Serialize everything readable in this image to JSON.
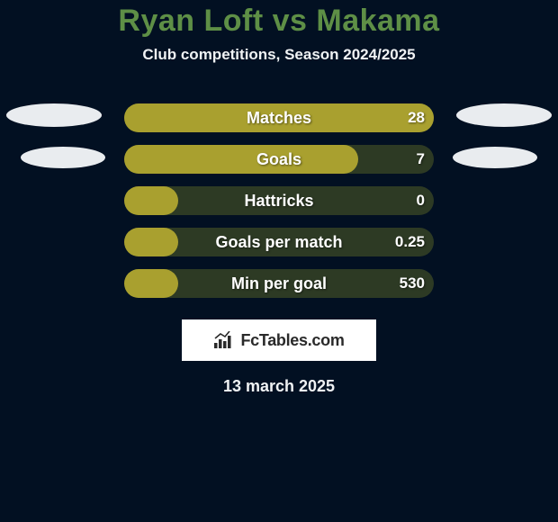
{
  "colors": {
    "background": "#021022",
    "title": "#5e8f46",
    "subtitle": "#f0f2f4",
    "bar_fill": "#a9a02f",
    "bar_track": "#2d3a24",
    "stat_text": "#ffffff",
    "ellipse": "#e9ecef",
    "badge_bg": "#ffffff",
    "badge_text": "#2a2a2a",
    "date": "#f0f2f4"
  },
  "title": {
    "text": "Ryan Loft vs Makama",
    "fontsize": 34
  },
  "subtitle": {
    "text": "Club competitions, Season 2024/2025",
    "fontsize": 17
  },
  "stats": {
    "label_fontsize": 18,
    "value_fontsize": 17,
    "rows": [
      {
        "label": "Matches",
        "value": "28",
        "fill_width": 344
      },
      {
        "label": "Goals",
        "value": "7",
        "fill_width": 260
      },
      {
        "label": "Hattricks",
        "value": "0",
        "fill_width": 60
      },
      {
        "label": "Goals per match",
        "value": "0.25",
        "fill_width": 60
      },
      {
        "label": "Min per goal",
        "value": "530",
        "fill_width": 60
      }
    ]
  },
  "badge": {
    "text": "FcTables.com"
  },
  "date": {
    "text": "13 march 2025",
    "fontsize": 18
  }
}
